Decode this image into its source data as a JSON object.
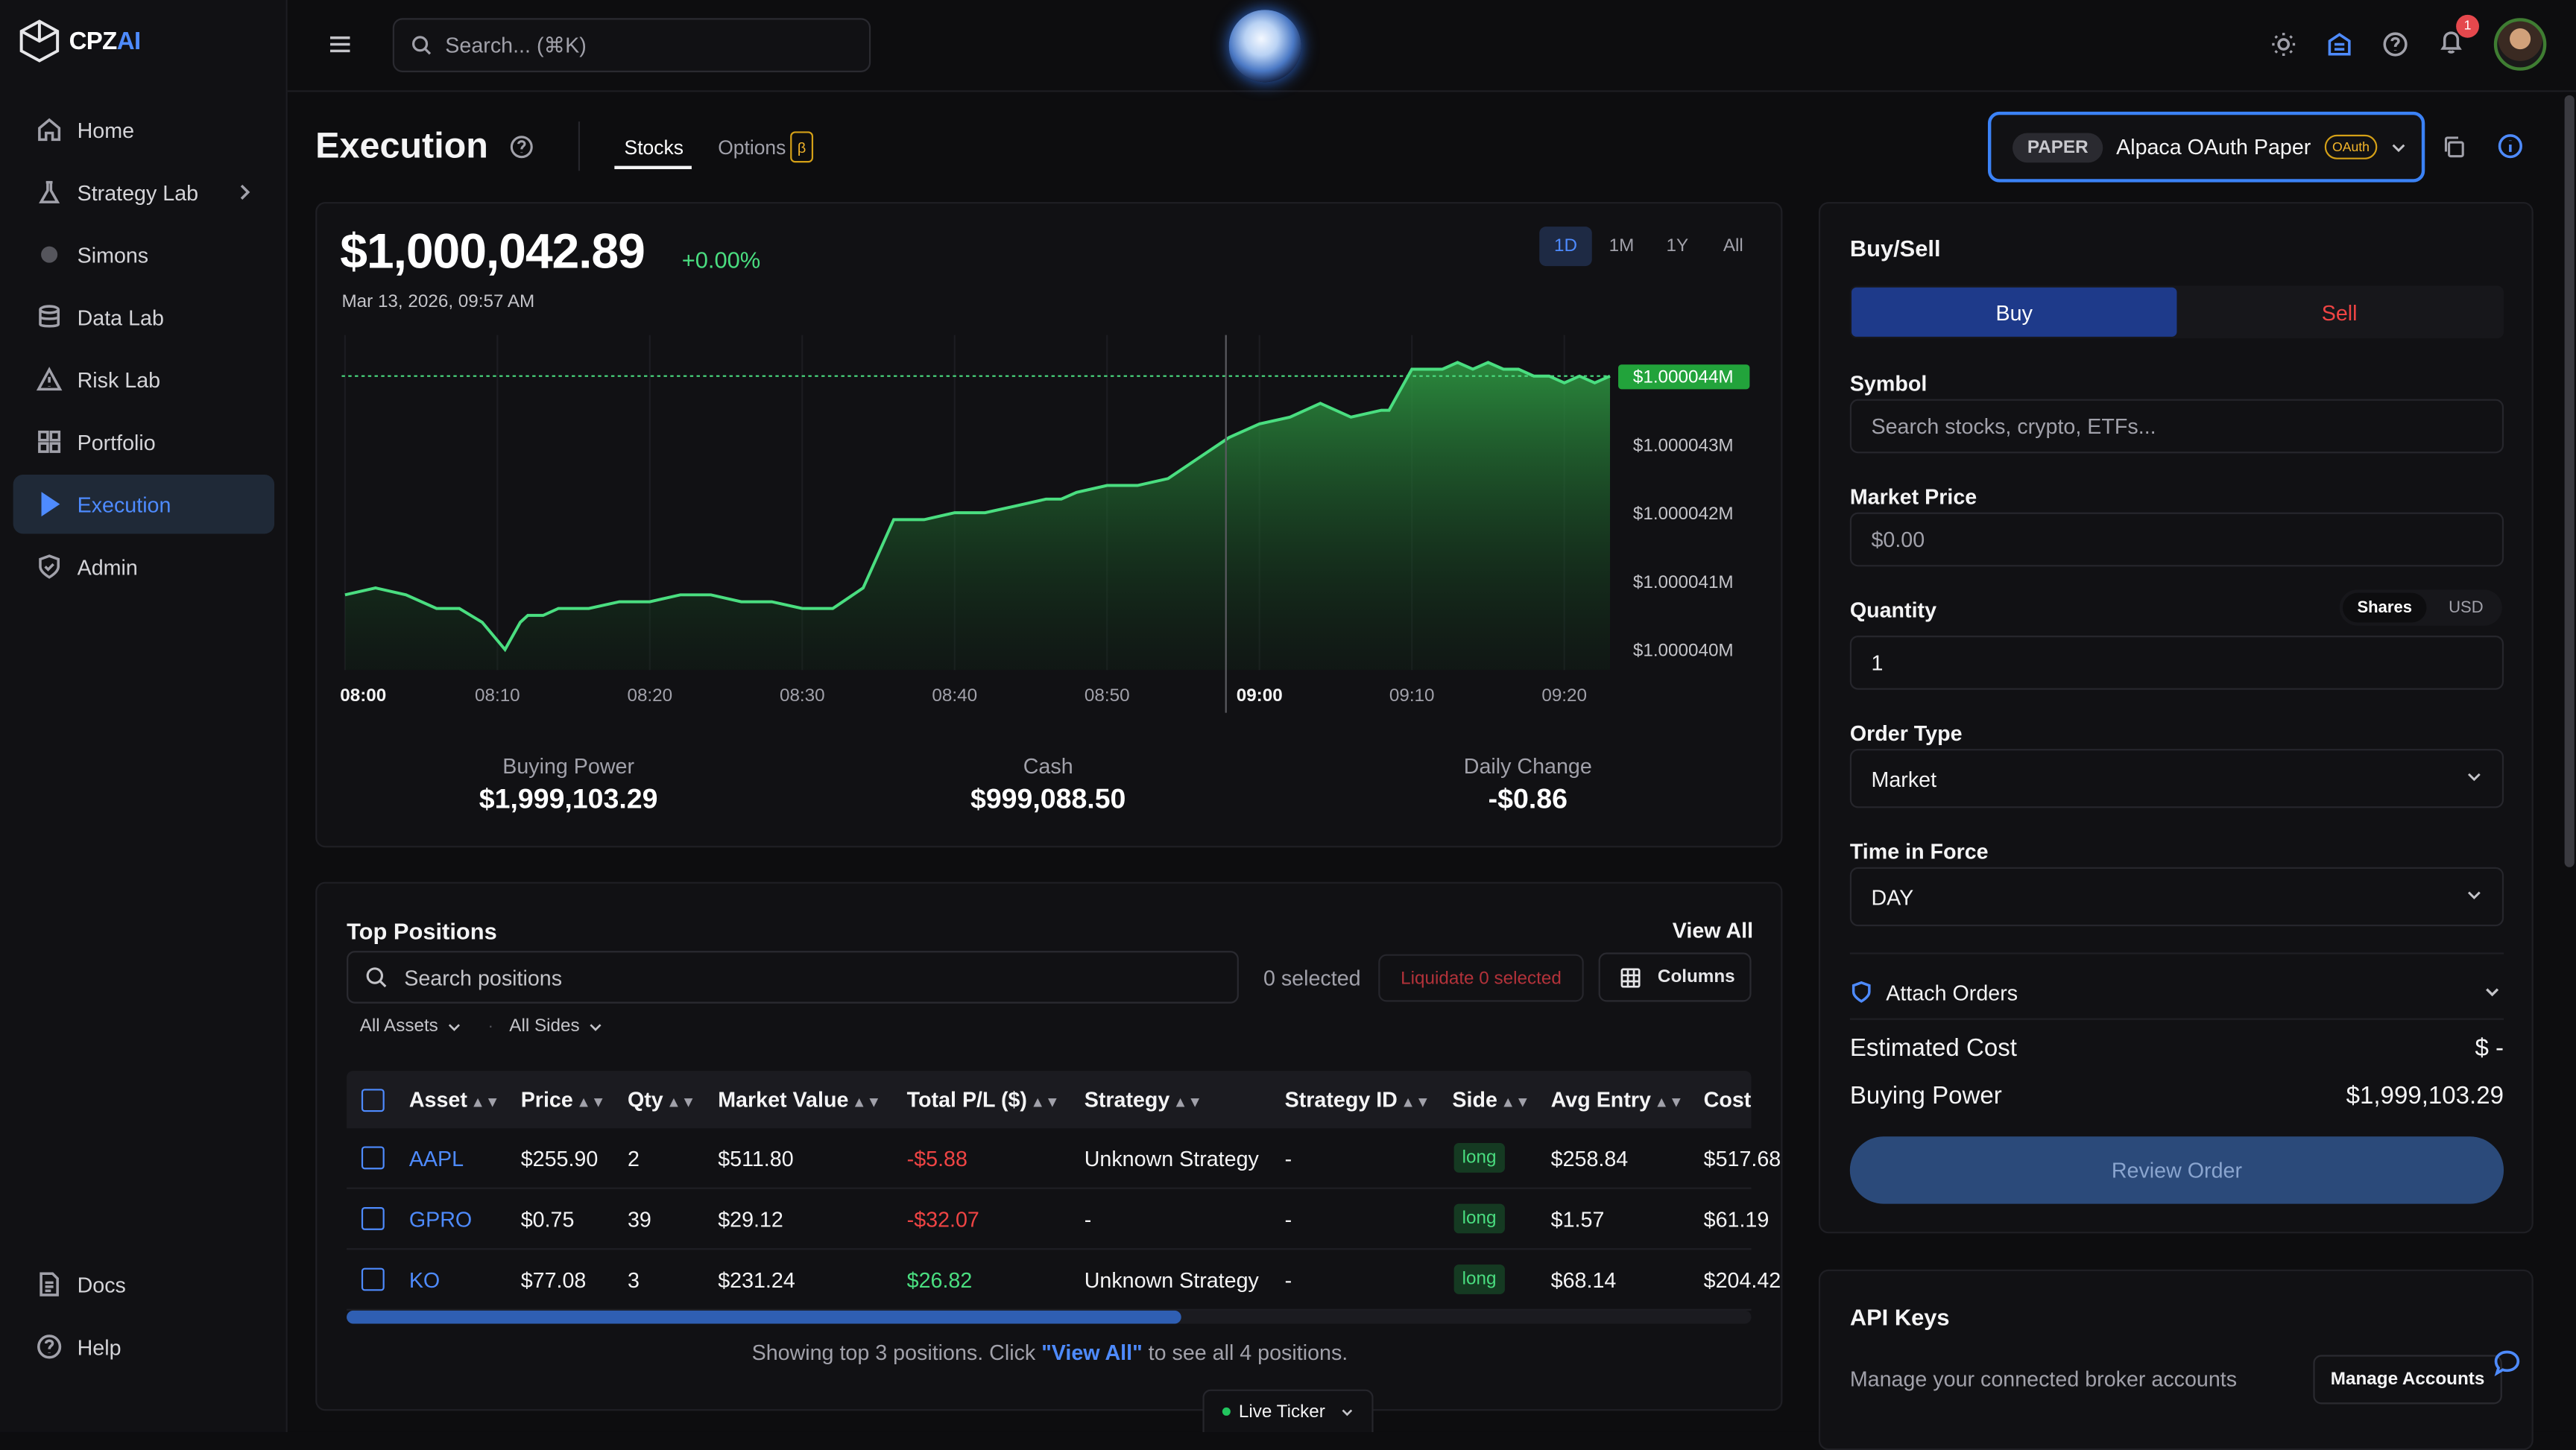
{
  "app": {
    "logo_main": "CPZ",
    "logo_accent": "AI"
  },
  "sidebar": {
    "items": [
      {
        "label": "Home",
        "icon": "home-icon"
      },
      {
        "label": "Strategy Lab",
        "icon": "flask-icon"
      },
      {
        "label": "Simons",
        "icon": "dot-icon"
      },
      {
        "label": "Data Lab",
        "icon": "database-icon"
      },
      {
        "label": "Risk Lab",
        "icon": "warning-icon"
      },
      {
        "label": "Portfolio",
        "icon": "grid-icon"
      },
      {
        "label": "Execution",
        "icon": "play-icon",
        "active": true
      },
      {
        "label": "Admin",
        "icon": "shield-icon"
      }
    ],
    "bottom": [
      {
        "label": "Docs",
        "icon": "document-icon"
      },
      {
        "label": "Help",
        "icon": "help-icon"
      }
    ]
  },
  "topbar": {
    "search_placeholder": "Search... (⌘K)",
    "notifications": "1"
  },
  "header": {
    "title": "Execution",
    "tabs": [
      {
        "label": "Stocks",
        "active": true
      },
      {
        "label": "Options",
        "badge": "β"
      }
    ],
    "broker": {
      "mode": "PAPER",
      "name": "Alpaca OAuth Paper",
      "auth": "OAuth"
    }
  },
  "summary": {
    "equity": "$1,000,042.89",
    "change": "+0.00%",
    "date": "Mar 13, 2026, 09:57 AM",
    "ranges": [
      "1D",
      "1M",
      "1Y",
      "All"
    ],
    "active_range": "1D",
    "stats": [
      {
        "label": "Buying Power",
        "value": "$1,999,103.29"
      },
      {
        "label": "Cash",
        "value": "$999,088.50"
      },
      {
        "label": "Daily Change",
        "value": "-$0.86"
      }
    ]
  },
  "chart_data": {
    "type": "area",
    "x_ticks": [
      "08:00",
      "08:10",
      "08:20",
      "08:30",
      "08:40",
      "08:50",
      "09:00",
      "09:10",
      "09:20"
    ],
    "y_ticks": [
      "$1.000044M",
      "$1.000043M",
      "$1.000042M",
      "$1.000041M",
      "$1.000040M"
    ],
    "y_tick_values": [
      1000044,
      1000043,
      1000042,
      1000041,
      1000040
    ],
    "ylim": [
      1000039.7,
      1000044.6
    ],
    "xlim": [
      0,
      83
    ],
    "last_value_label": "$1.000044M",
    "last_value": 1000044.0,
    "cursor_x": 57.8,
    "series": [
      {
        "x": [
          0,
          2,
          4,
          6,
          7.5,
          9,
          10.5,
          11.5,
          12,
          13,
          14,
          16,
          18,
          20,
          22,
          24,
          26,
          28,
          30,
          32,
          34,
          36,
          38,
          40,
          42,
          44,
          46,
          47,
          48,
          50,
          52,
          54,
          56,
          58,
          60,
          62,
          64,
          66,
          68,
          68.5,
          70,
          72,
          73,
          74,
          75,
          76,
          77,
          78,
          79,
          80,
          81,
          82,
          83
        ],
        "y": [
          1000040.8,
          1000040.9,
          1000040.8,
          1000040.6,
          1000040.6,
          1000040.4,
          1000040.0,
          1000040.4,
          1000040.5,
          1000040.5,
          1000040.6,
          1000040.6,
          1000040.7,
          1000040.7,
          1000040.8,
          1000040.8,
          1000040.7,
          1000040.7,
          1000040.6,
          1000040.6,
          1000040.9,
          1000041.9,
          1000041.9,
          1000042.0,
          1000042.0,
          1000042.1,
          1000042.2,
          1000042.2,
          1000042.3,
          1000042.4,
          1000042.4,
          1000042.5,
          1000042.8,
          1000043.1,
          1000043.3,
          1000043.4,
          1000043.6,
          1000043.4,
          1000043.5,
          1000043.5,
          1000044.1,
          1000044.1,
          1000044.2,
          1000044.1,
          1000044.2,
          1000044.1,
          1000044.1,
          1000044.0,
          1000044.0,
          1000043.9,
          1000044.0,
          1000043.9,
          1000044.0
        ]
      }
    ]
  },
  "positions": {
    "title": "Top Positions",
    "view_all": "View All",
    "search_placeholder": "Search positions",
    "selected": "0 selected",
    "liquidate": "Liquidate 0 selected",
    "columns_btn": "Columns",
    "filters": [
      "All Assets",
      "All Sides"
    ],
    "headers": [
      "Asset",
      "Price",
      "Qty",
      "Market Value",
      "Total P/L ($)",
      "Strategy",
      "Strategy ID",
      "Side",
      "Avg Entry",
      "Cost"
    ],
    "rows": [
      {
        "asset": "AAPL",
        "price": "$255.90",
        "qty": "2",
        "mv": "$511.80",
        "pl": "-$5.88",
        "pl_sign": "neg",
        "strategy": "Unknown Strategy",
        "sid": "-",
        "side": "long",
        "avg": "$258.84",
        "cost": "$517.68"
      },
      {
        "asset": "GPRO",
        "price": "$0.75",
        "qty": "39",
        "mv": "$29.12",
        "pl": "-$32.07",
        "pl_sign": "neg",
        "strategy": "-",
        "sid": "-",
        "side": "long",
        "avg": "$1.57",
        "cost": "$61.19"
      },
      {
        "asset": "KO",
        "price": "$77.08",
        "qty": "3",
        "mv": "$231.24",
        "pl": "$26.82",
        "pl_sign": "pos",
        "strategy": "Unknown Strategy",
        "sid": "-",
        "side": "long",
        "avg": "$68.14",
        "cost": "$204.42"
      }
    ],
    "footer_pre": "Showing top 3 positions. Click ",
    "footer_link": "\"View All\"",
    "footer_post": " to see all 4 positions.",
    "live_ticker": "Live Ticker"
  },
  "order": {
    "title": "Buy/Sell",
    "buy": "Buy",
    "sell": "Sell",
    "symbol_label": "Symbol",
    "symbol_placeholder": "Search stocks, crypto, ETFs...",
    "price_label": "Market Price",
    "price_value": "$0.00",
    "qty_label": "Quantity",
    "qty_value": "1",
    "unit_shares": "Shares",
    "unit_usd": "USD",
    "type_label": "Order Type",
    "type_value": "Market",
    "tif_label": "Time in Force",
    "tif_value": "DAY",
    "attach": "Attach Orders",
    "est_label": "Estimated Cost",
    "est_value": "$ -",
    "bp_label": "Buying Power",
    "bp_value": "$1,999,103.29",
    "review": "Review Order"
  },
  "api_keys": {
    "title": "API Keys",
    "desc": "Manage your connected broker accounts",
    "manage": "Manage Accounts"
  },
  "colors": {
    "accent": "#4e8bff",
    "positive": "#4ade80",
    "negative": "#ef4444",
    "beta": "#f5b62a"
  }
}
